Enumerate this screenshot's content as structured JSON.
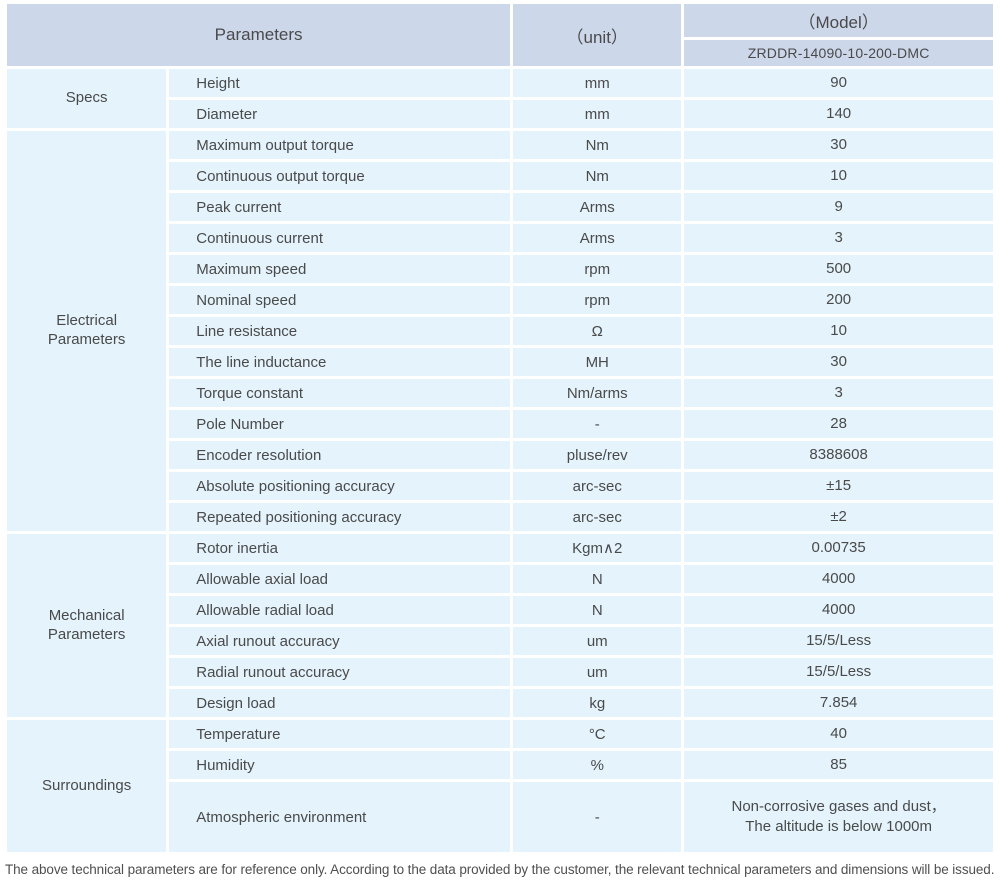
{
  "colors": {
    "header_bg": "#cdd7ea",
    "row_bg": "#e4f3fc",
    "text": "#4a4a4a",
    "page_bg": "#ffffff"
  },
  "header": {
    "parameters_label": "Parameters",
    "unit_label": "（unit）",
    "model_label": "（Model）",
    "model_number": "ZRDDR-14090-10-200-DMC"
  },
  "sections": [
    {
      "label": "Specs",
      "rows": [
        {
          "param": "Height",
          "unit": "mm",
          "value": "90"
        },
        {
          "param": "Diameter",
          "unit": "mm",
          "value": "140"
        }
      ]
    },
    {
      "label": "Electrical\nParameters",
      "rows": [
        {
          "param": "Maximum output torque",
          "unit": "Nm",
          "value": "30"
        },
        {
          "param": "Continuous output torque",
          "unit": "Nm",
          "value": "10"
        },
        {
          "param": "Peak current",
          "unit": "Arms",
          "value": "9"
        },
        {
          "param": "Continuous current",
          "unit": "Arms",
          "value": "3"
        },
        {
          "param": "Maximum speed",
          "unit": "rpm",
          "value": "500"
        },
        {
          "param": "Nominal speed",
          "unit": "rpm",
          "value": "200"
        },
        {
          "param": "Line resistance",
          "unit": "Ω",
          "value": "10"
        },
        {
          "param": "The line inductance",
          "unit": "MH",
          "value": "30"
        },
        {
          "param": "Torque constant",
          "unit": "Nm/arms",
          "value": "3"
        },
        {
          "param": "Pole Number",
          "unit": "-",
          "value": "28"
        },
        {
          "param": "Encoder resolution",
          "unit": "pluse/rev",
          "value": "8388608"
        },
        {
          "param": "Absolute positioning accuracy",
          "unit": "arc-sec",
          "value": "±15"
        },
        {
          "param": "Repeated positioning accuracy",
          "unit": "arc-sec",
          "value": "±2"
        }
      ]
    },
    {
      "label": "Mechanical\nParameters",
      "rows": [
        {
          "param": "Rotor inertia",
          "unit": "Kgm∧2",
          "value": "0.00735"
        },
        {
          "param": "Allowable axial load",
          "unit": "N",
          "value": "4000"
        },
        {
          "param": "Allowable radial load",
          "unit": "N",
          "value": "4000"
        },
        {
          "param": "Axial runout accuracy",
          "unit": "um",
          "value": "15/5/Less"
        },
        {
          "param": "Radial runout accuracy",
          "unit": "um",
          "value": "15/5/Less"
        },
        {
          "param": "Design load",
          "unit": "kg",
          "value": "7.854"
        }
      ]
    },
    {
      "label": "Surroundings",
      "rows": [
        {
          "param": "Temperature",
          "unit": "°C",
          "value": "40"
        },
        {
          "param": "Humidity",
          "unit": "%",
          "value": "85"
        },
        {
          "param": "Atmospheric environment",
          "unit": "-",
          "value": "Non-corrosive gases and dust，\nThe altitude is below 1000m"
        }
      ]
    }
  ],
  "footer": {
    "note": "The above technical parameters are for reference only. According to the data provided by the customer, the relevant technical parameters and dimensions will be issued."
  }
}
